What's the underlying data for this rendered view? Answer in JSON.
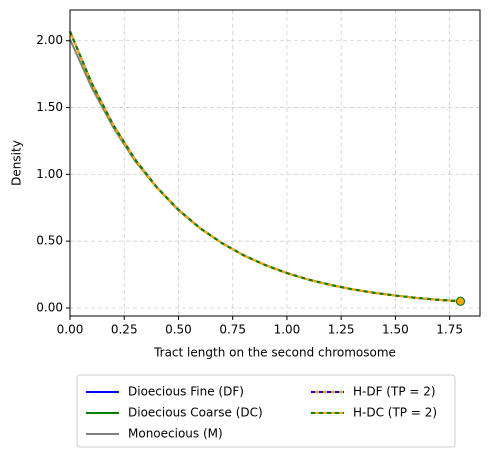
{
  "chart_data": {
    "type": "line",
    "x_label": "Tract length on the second chromosome",
    "y_label": "Density",
    "x": [
      0,
      0.1,
      0.2,
      0.3,
      0.4,
      0.5,
      0.6,
      0.7,
      0.8,
      0.9,
      1.0,
      1.1,
      1.2,
      1.3,
      1.4,
      1.5,
      1.6,
      1.7,
      1.8
    ],
    "series": [
      {
        "name": "Dioecious Fine (DF)",
        "color": "#0000ff",
        "values": [
          2.07,
          1.683,
          1.368,
          1.112,
          0.904,
          0.735,
          0.597,
          0.486,
          0.395,
          0.321,
          0.261,
          0.212,
          0.173,
          0.14,
          0.114,
          0.093,
          0.075,
          0.061,
          0.05
        ]
      },
      {
        "name": "Dioecious Coarse (DC)",
        "color": "#008000",
        "values": [
          2.07,
          1.683,
          1.368,
          1.112,
          0.904,
          0.735,
          0.597,
          0.486,
          0.395,
          0.321,
          0.261,
          0.212,
          0.173,
          0.14,
          0.114,
          0.093,
          0.075,
          0.061,
          0.05
        ]
      },
      {
        "name": "Monoecious (M)",
        "color": "#808080",
        "values": [
          2.01,
          1.65,
          1.35,
          1.1,
          0.9,
          0.73,
          0.595,
          0.485,
          0.394,
          0.32,
          0.26,
          0.212,
          0.173,
          0.14,
          0.114,
          0.093,
          0.075,
          0.061,
          0.05
        ]
      },
      {
        "name": "H-DF (TP = 2)",
        "color": "#ffa500",
        "dash_color": "#0000ff",
        "values": [
          2.07,
          1.683,
          1.368,
          1.112,
          0.904,
          0.735,
          0.597,
          0.486,
          0.395,
          0.321,
          0.261,
          0.212,
          0.173,
          0.14,
          0.114,
          0.093,
          0.075,
          0.061,
          0.05
        ]
      },
      {
        "name": "H-DC (TP = 2)",
        "color": "#ffa500",
        "dash_color": "#008000",
        "values": [
          2.07,
          1.683,
          1.368,
          1.112,
          0.904,
          0.735,
          0.597,
          0.486,
          0.395,
          0.321,
          0.261,
          0.212,
          0.173,
          0.14,
          0.114,
          0.093,
          0.075,
          0.061,
          0.05
        ]
      }
    ],
    "xlim": [
      0,
      1.89
    ],
    "ylim": [
      -0.06,
      2.23
    ],
    "xticks": [
      {
        "value": 0,
        "label": "0.00"
      },
      {
        "value": 0.25,
        "label": "0.25"
      },
      {
        "value": 0.5,
        "label": "0.50"
      },
      {
        "value": 0.75,
        "label": "0.75"
      },
      {
        "value": 1,
        "label": "1.00"
      },
      {
        "value": 1.25,
        "label": "1.25"
      },
      {
        "value": 1.5,
        "label": "1.50"
      },
      {
        "value": 1.75,
        "label": "1.75"
      }
    ],
    "yticks": [
      {
        "value": 0,
        "label": "0.00"
      },
      {
        "value": 0.5,
        "label": "0.50"
      },
      {
        "value": 1,
        "label": "1.00"
      },
      {
        "value": 1.5,
        "label": "1.50"
      },
      {
        "value": 2,
        "label": "2.00"
      }
    ],
    "grid": true,
    "legend": "bottom"
  }
}
